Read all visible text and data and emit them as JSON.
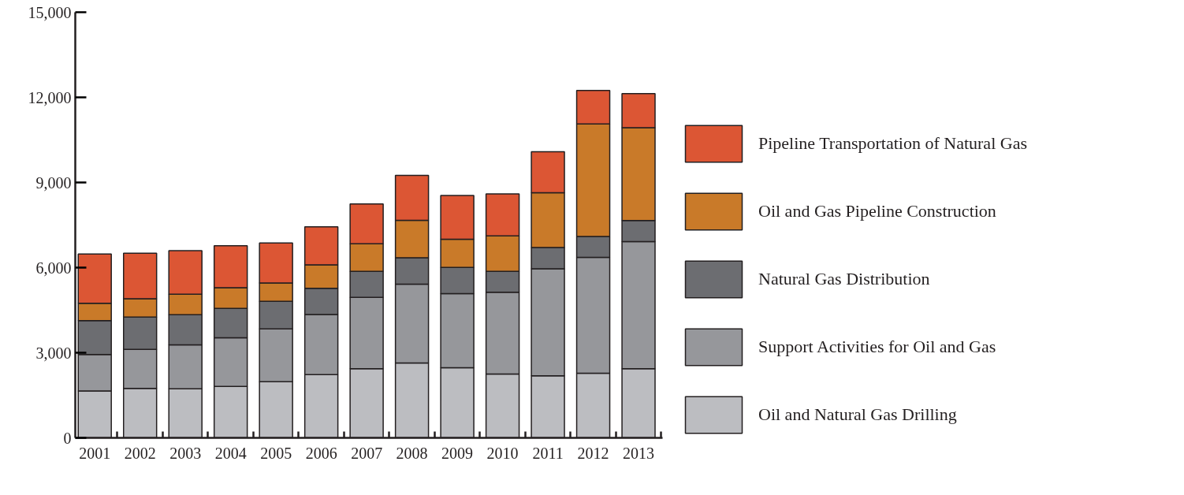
{
  "chart_data": {
    "type": "bar",
    "stacked": true,
    "categories": [
      "2001",
      "2002",
      "2003",
      "2004",
      "2005",
      "2006",
      "2007",
      "2008",
      "2009",
      "2010",
      "2011",
      "2012",
      "2013"
    ],
    "series": [
      {
        "name": "Oil and Natural Gas Drilling",
        "color": "#bcbdc1",
        "values": [
          1650,
          1740,
          1730,
          1810,
          1980,
          2230,
          2440,
          2640,
          2470,
          2250,
          2190,
          2280,
          2440
        ]
      },
      {
        "name": "Support Activities for Oil and Gas",
        "color": "#96979b",
        "values": [
          1290,
          1380,
          1550,
          1720,
          1860,
          2120,
          2510,
          2780,
          2610,
          2880,
          3770,
          4080,
          4480
        ]
      },
      {
        "name": "Natural Gas Distribution",
        "color": "#6c6d71",
        "values": [
          1190,
          1140,
          1060,
          1030,
          970,
          920,
          920,
          930,
          930,
          740,
          750,
          740,
          740
        ]
      },
      {
        "name": "Oil and Gas Pipeline Construction",
        "color": "#c97a29",
        "values": [
          610,
          640,
          720,
          730,
          650,
          830,
          970,
          1320,
          990,
          1250,
          1930,
          3960,
          3270
        ]
      },
      {
        "name": "Pipeline Transportation of Natural Gas",
        "color": "#dc5634",
        "values": [
          1740,
          1610,
          1540,
          1480,
          1410,
          1340,
          1400,
          1580,
          1540,
          1480,
          1440,
          1180,
          1200
        ]
      }
    ],
    "ylim": [
      0,
      15000
    ],
    "yticks": [
      {
        "value": 0,
        "label": "0"
      },
      {
        "value": 3000,
        "label": "3,000"
      },
      {
        "value": 6000,
        "label": "6,000"
      },
      {
        "value": 9000,
        "label": "9,000"
      },
      {
        "value": 12000,
        "label": "12,000"
      },
      {
        "value": 15000,
        "label": "15,000"
      }
    ],
    "grid": false,
    "legend": "right"
  }
}
